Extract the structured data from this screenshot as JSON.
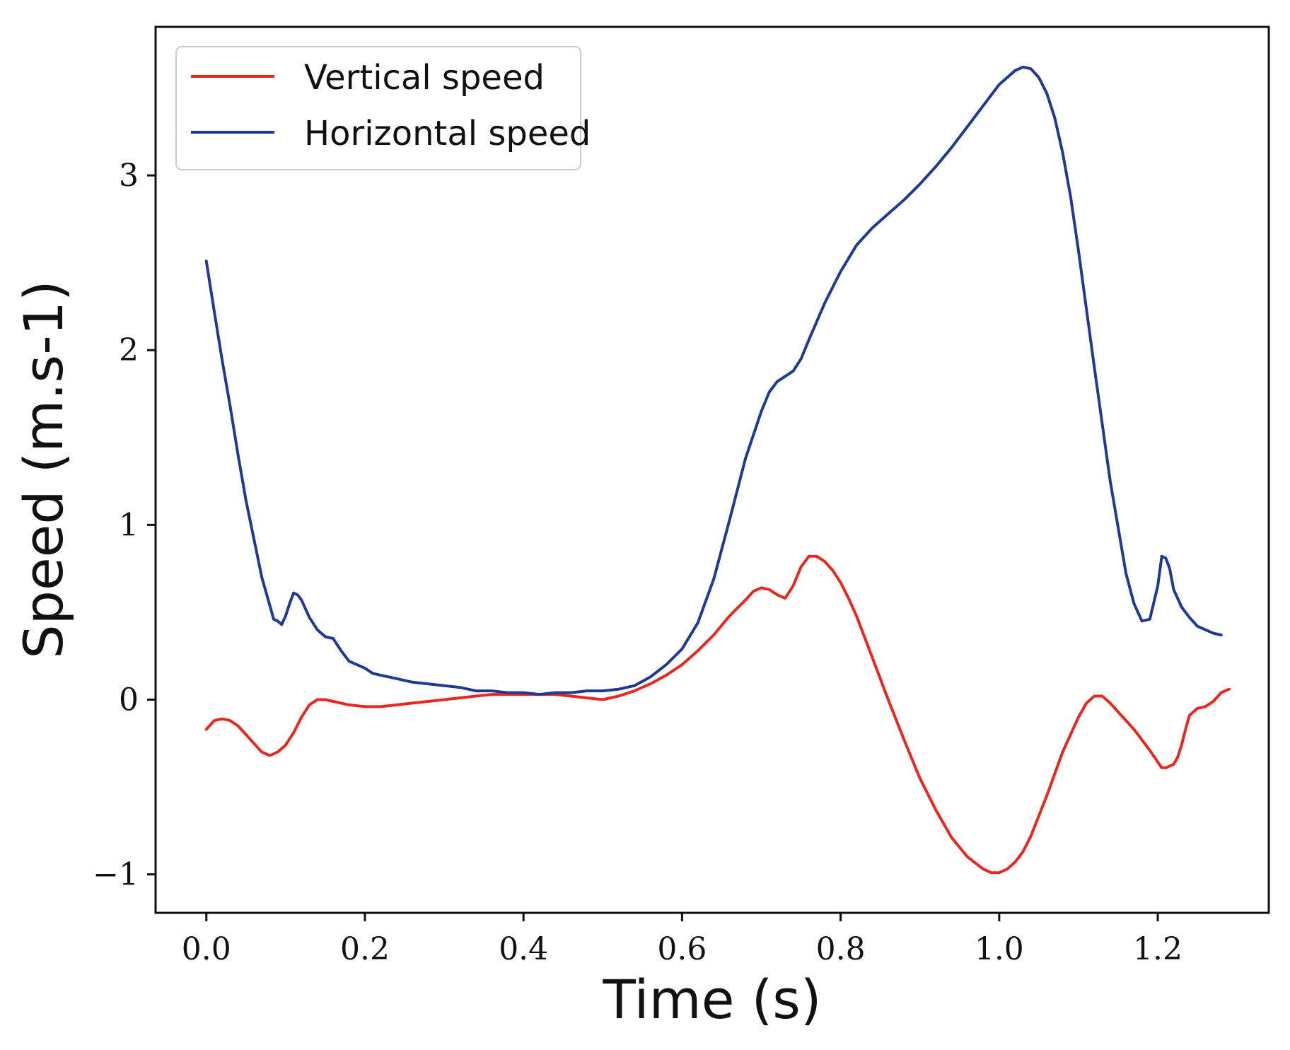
{
  "chart_data": {
    "type": "line",
    "title": "",
    "xlabel": "Time (s)",
    "ylabel": "Speed (m.s-1)",
    "xlim": [
      -0.064,
      1.34
    ],
    "ylim": [
      -1.22,
      3.85
    ],
    "grid": false,
    "legend_position": "top-left",
    "x_ticks": [
      0.0,
      0.2,
      0.4,
      0.6,
      0.8,
      1.0,
      1.2
    ],
    "x_tick_labels": [
      "0.0",
      "0.2",
      "0.4",
      "0.6",
      "0.8",
      "1.0",
      "1.2"
    ],
    "y_ticks": [
      -1,
      0,
      1,
      2,
      3
    ],
    "y_tick_labels": [
      "−1",
      "0",
      "1",
      "2",
      "3"
    ],
    "series": [
      {
        "name": "Vertical speed",
        "color": "#e8281e",
        "points": [
          [
            0.0,
            -0.17
          ],
          [
            0.01,
            -0.12
          ],
          [
            0.02,
            -0.11
          ],
          [
            0.03,
            -0.12
          ],
          [
            0.04,
            -0.15
          ],
          [
            0.05,
            -0.2
          ],
          [
            0.06,
            -0.25
          ],
          [
            0.07,
            -0.3
          ],
          [
            0.08,
            -0.32
          ],
          [
            0.09,
            -0.3
          ],
          [
            0.1,
            -0.26
          ],
          [
            0.11,
            -0.19
          ],
          [
            0.12,
            -0.1
          ],
          [
            0.13,
            -0.03
          ],
          [
            0.14,
            0.0
          ],
          [
            0.15,
            0.0
          ],
          [
            0.16,
            -0.01
          ],
          [
            0.17,
            -0.02
          ],
          [
            0.18,
            -0.03
          ],
          [
            0.2,
            -0.04
          ],
          [
            0.22,
            -0.04
          ],
          [
            0.24,
            -0.03
          ],
          [
            0.26,
            -0.02
          ],
          [
            0.28,
            -0.01
          ],
          [
            0.3,
            0.0
          ],
          [
            0.32,
            0.01
          ],
          [
            0.34,
            0.02
          ],
          [
            0.36,
            0.03
          ],
          [
            0.38,
            0.03
          ],
          [
            0.4,
            0.03
          ],
          [
            0.42,
            0.03
          ],
          [
            0.44,
            0.03
          ],
          [
            0.46,
            0.02
          ],
          [
            0.48,
            0.01
          ],
          [
            0.5,
            0.0
          ],
          [
            0.52,
            0.02
          ],
          [
            0.54,
            0.05
          ],
          [
            0.56,
            0.09
          ],
          [
            0.58,
            0.14
          ],
          [
            0.6,
            0.2
          ],
          [
            0.62,
            0.28
          ],
          [
            0.64,
            0.37
          ],
          [
            0.66,
            0.48
          ],
          [
            0.68,
            0.57
          ],
          [
            0.69,
            0.62
          ],
          [
            0.7,
            0.64
          ],
          [
            0.71,
            0.63
          ],
          [
            0.72,
            0.6
          ],
          [
            0.73,
            0.58
          ],
          [
            0.74,
            0.65
          ],
          [
            0.75,
            0.76
          ],
          [
            0.76,
            0.82
          ],
          [
            0.77,
            0.82
          ],
          [
            0.78,
            0.79
          ],
          [
            0.79,
            0.74
          ],
          [
            0.8,
            0.67
          ],
          [
            0.81,
            0.58
          ],
          [
            0.82,
            0.48
          ],
          [
            0.84,
            0.24
          ],
          [
            0.86,
            0.0
          ],
          [
            0.88,
            -0.23
          ],
          [
            0.9,
            -0.45
          ],
          [
            0.92,
            -0.63
          ],
          [
            0.94,
            -0.79
          ],
          [
            0.96,
            -0.9
          ],
          [
            0.98,
            -0.97
          ],
          [
            0.99,
            -0.99
          ],
          [
            1.0,
            -0.99
          ],
          [
            1.01,
            -0.97
          ],
          [
            1.02,
            -0.93
          ],
          [
            1.03,
            -0.87
          ],
          [
            1.04,
            -0.78
          ],
          [
            1.06,
            -0.55
          ],
          [
            1.08,
            -0.3
          ],
          [
            1.1,
            -0.1
          ],
          [
            1.11,
            -0.02
          ],
          [
            1.12,
            0.02
          ],
          [
            1.13,
            0.02
          ],
          [
            1.14,
            -0.02
          ],
          [
            1.15,
            -0.07
          ],
          [
            1.17,
            -0.17
          ],
          [
            1.19,
            -0.29
          ],
          [
            1.205,
            -0.39
          ],
          [
            1.21,
            -0.39
          ],
          [
            1.22,
            -0.37
          ],
          [
            1.225,
            -0.33
          ],
          [
            1.23,
            -0.26
          ],
          [
            1.235,
            -0.17
          ],
          [
            1.24,
            -0.09
          ],
          [
            1.25,
            -0.05
          ],
          [
            1.26,
            -0.04
          ],
          [
            1.27,
            -0.01
          ],
          [
            1.28,
            0.04
          ],
          [
            1.29,
            0.06
          ]
        ]
      },
      {
        "name": "Horizontal speed",
        "color": "#1f3a93",
        "points": [
          [
            0.0,
            2.51
          ],
          [
            0.01,
            2.22
          ],
          [
            0.02,
            1.94
          ],
          [
            0.03,
            1.68
          ],
          [
            0.04,
            1.4
          ],
          [
            0.05,
            1.14
          ],
          [
            0.06,
            0.92
          ],
          [
            0.07,
            0.7
          ],
          [
            0.08,
            0.54
          ],
          [
            0.085,
            0.46
          ],
          [
            0.09,
            0.45
          ],
          [
            0.095,
            0.43
          ],
          [
            0.1,
            0.48
          ],
          [
            0.105,
            0.55
          ],
          [
            0.11,
            0.61
          ],
          [
            0.115,
            0.6
          ],
          [
            0.12,
            0.57
          ],
          [
            0.13,
            0.47
          ],
          [
            0.14,
            0.4
          ],
          [
            0.15,
            0.36
          ],
          [
            0.16,
            0.35
          ],
          [
            0.17,
            0.28
          ],
          [
            0.18,
            0.22
          ],
          [
            0.19,
            0.2
          ],
          [
            0.2,
            0.18
          ],
          [
            0.21,
            0.15
          ],
          [
            0.22,
            0.14
          ],
          [
            0.24,
            0.12
          ],
          [
            0.26,
            0.1
          ],
          [
            0.28,
            0.09
          ],
          [
            0.3,
            0.08
          ],
          [
            0.32,
            0.07
          ],
          [
            0.34,
            0.05
          ],
          [
            0.36,
            0.05
          ],
          [
            0.38,
            0.04
          ],
          [
            0.4,
            0.04
          ],
          [
            0.42,
            0.03
          ],
          [
            0.44,
            0.04
          ],
          [
            0.46,
            0.04
          ],
          [
            0.48,
            0.05
          ],
          [
            0.5,
            0.05
          ],
          [
            0.52,
            0.06
          ],
          [
            0.54,
            0.08
          ],
          [
            0.56,
            0.13
          ],
          [
            0.58,
            0.2
          ],
          [
            0.6,
            0.29
          ],
          [
            0.62,
            0.44
          ],
          [
            0.64,
            0.69
          ],
          [
            0.66,
            1.03
          ],
          [
            0.68,
            1.38
          ],
          [
            0.7,
            1.65
          ],
          [
            0.71,
            1.76
          ],
          [
            0.72,
            1.82
          ],
          [
            0.73,
            1.85
          ],
          [
            0.74,
            1.88
          ],
          [
            0.75,
            1.95
          ],
          [
            0.76,
            2.06
          ],
          [
            0.78,
            2.27
          ],
          [
            0.8,
            2.45
          ],
          [
            0.82,
            2.6
          ],
          [
            0.84,
            2.7
          ],
          [
            0.86,
            2.78
          ],
          [
            0.88,
            2.86
          ],
          [
            0.9,
            2.95
          ],
          [
            0.92,
            3.05
          ],
          [
            0.94,
            3.16
          ],
          [
            0.96,
            3.28
          ],
          [
            0.98,
            3.4
          ],
          [
            1.0,
            3.52
          ],
          [
            1.02,
            3.6
          ],
          [
            1.03,
            3.62
          ],
          [
            1.04,
            3.61
          ],
          [
            1.05,
            3.56
          ],
          [
            1.06,
            3.47
          ],
          [
            1.07,
            3.33
          ],
          [
            1.08,
            3.13
          ],
          [
            1.09,
            2.88
          ],
          [
            1.1,
            2.57
          ],
          [
            1.12,
            1.9
          ],
          [
            1.14,
            1.25
          ],
          [
            1.16,
            0.72
          ],
          [
            1.17,
            0.55
          ],
          [
            1.18,
            0.45
          ],
          [
            1.19,
            0.46
          ],
          [
            1.2,
            0.65
          ],
          [
            1.205,
            0.82
          ],
          [
            1.21,
            0.81
          ],
          [
            1.215,
            0.75
          ],
          [
            1.22,
            0.63
          ],
          [
            1.23,
            0.53
          ],
          [
            1.24,
            0.47
          ],
          [
            1.25,
            0.42
          ],
          [
            1.26,
            0.4
          ],
          [
            1.27,
            0.38
          ],
          [
            1.28,
            0.37
          ]
        ]
      }
    ]
  }
}
